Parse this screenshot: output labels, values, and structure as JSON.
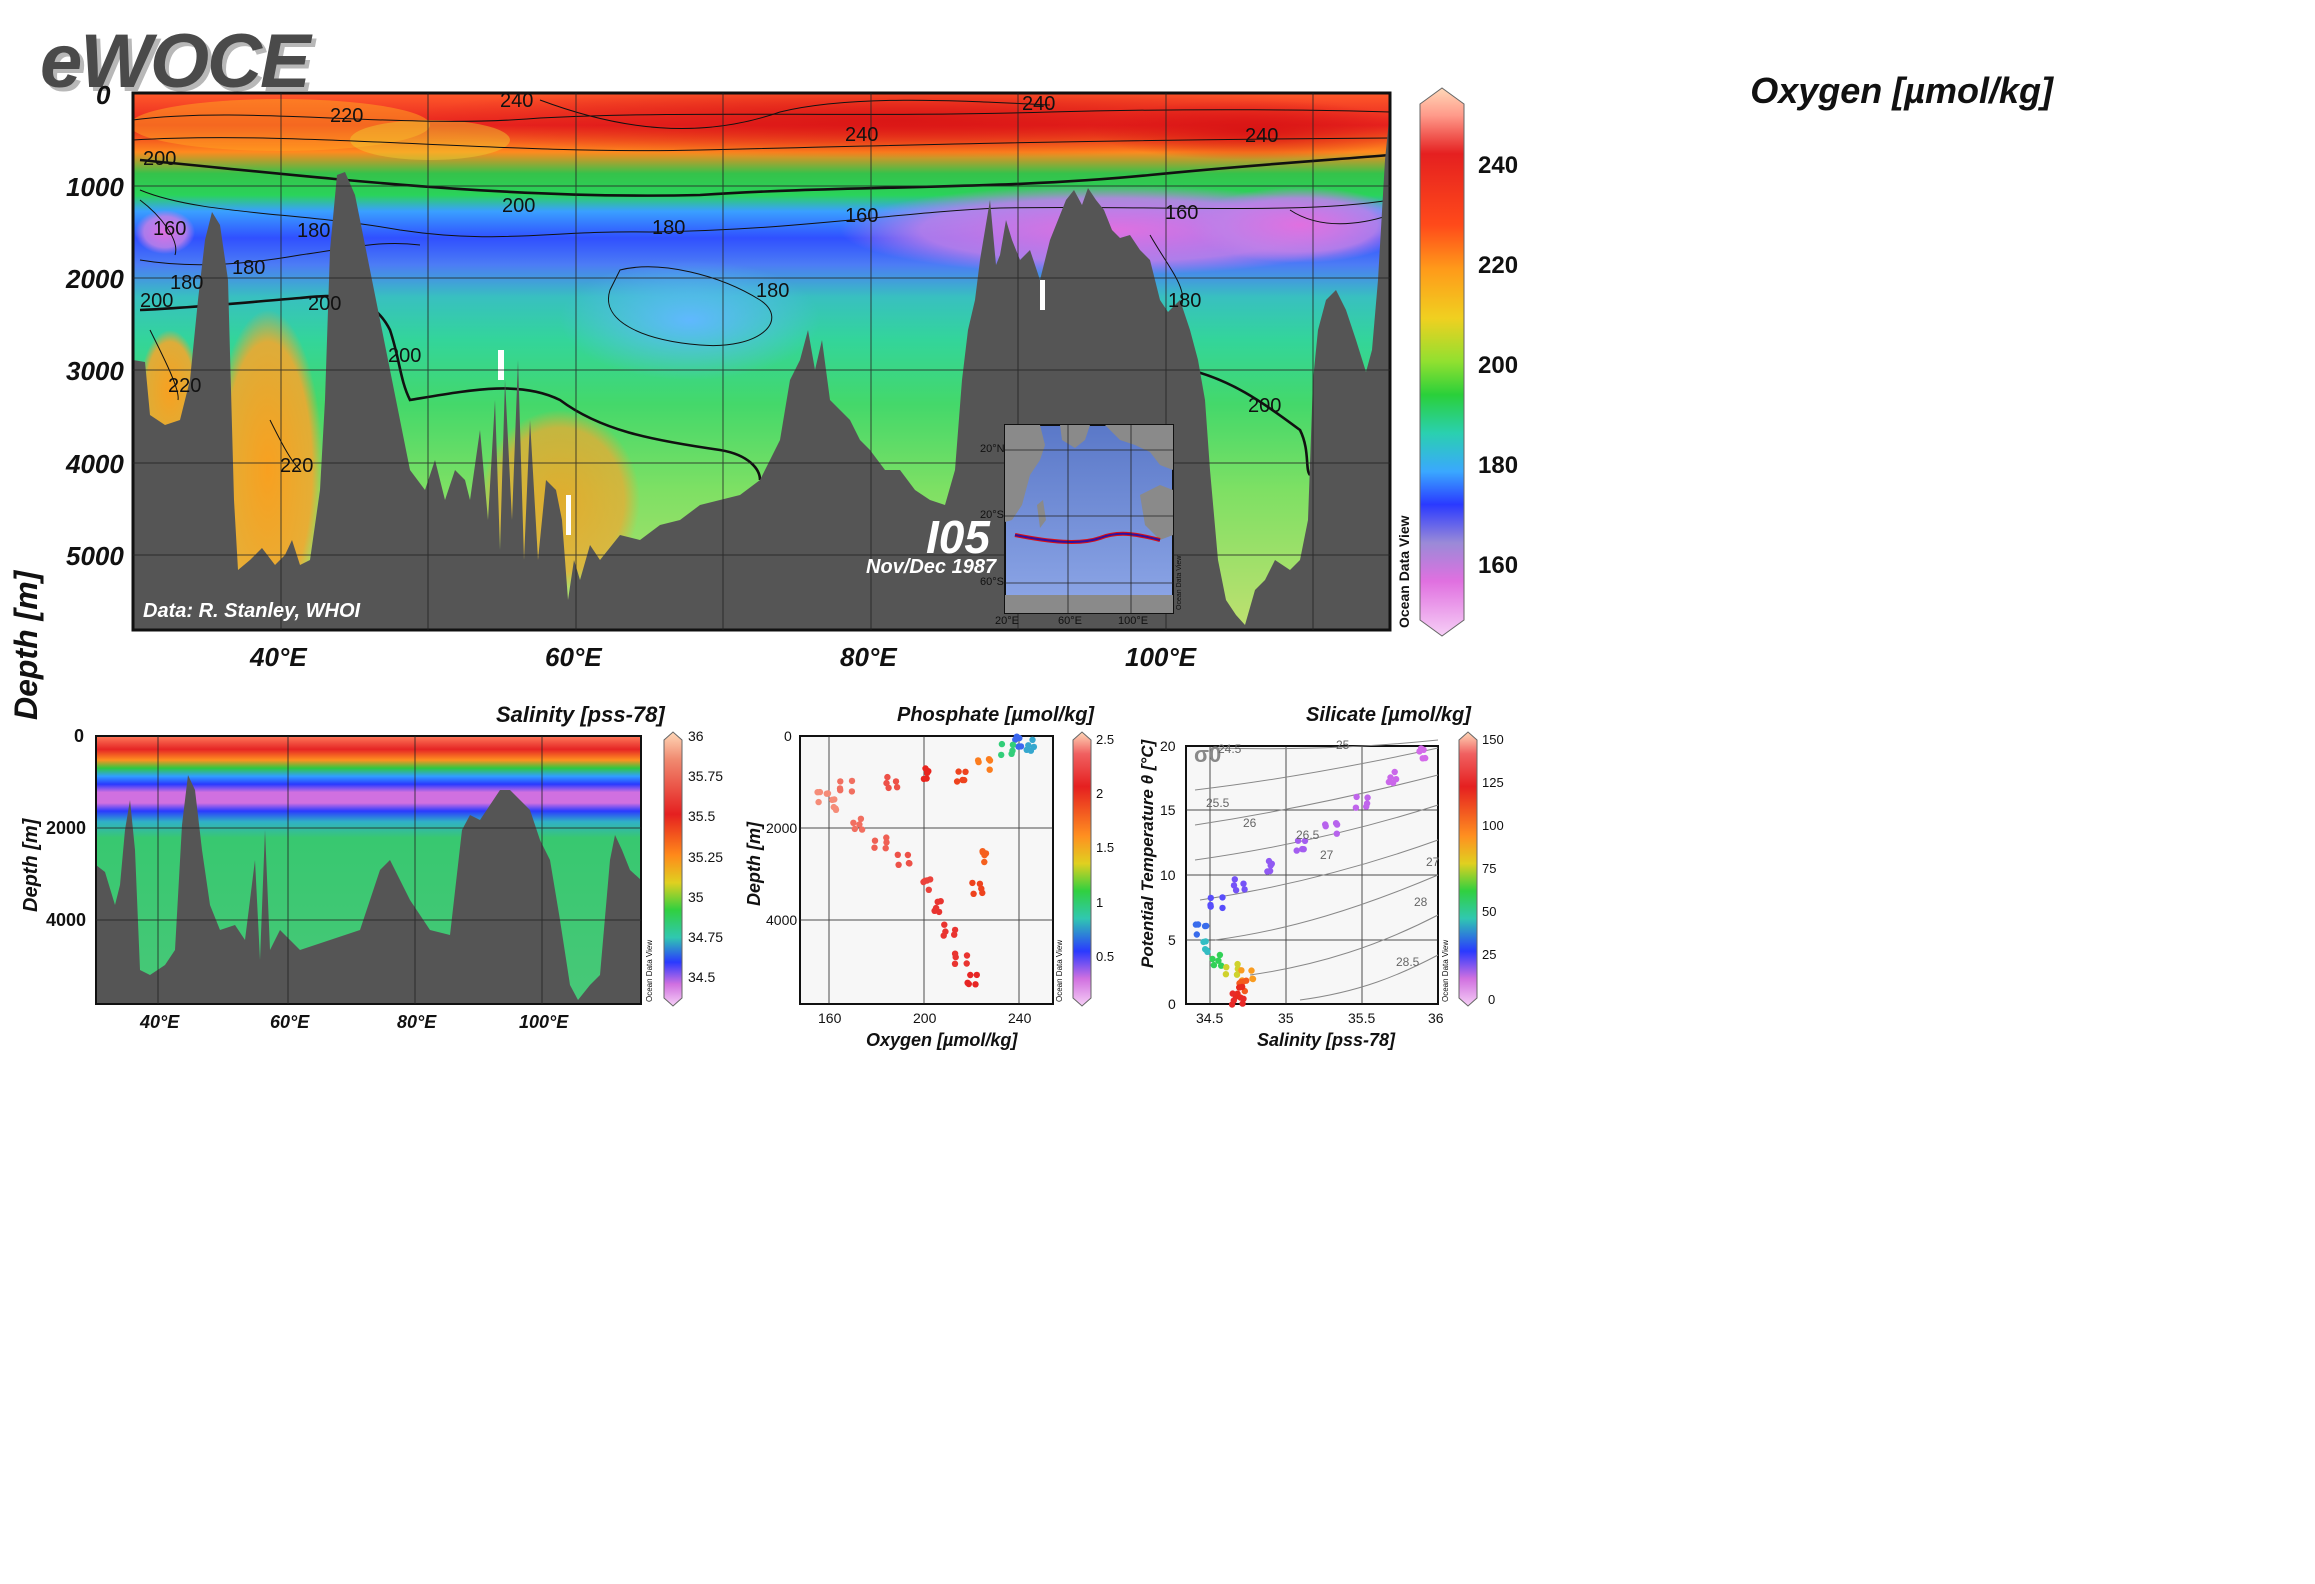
{
  "logo": "eWOCE",
  "main": {
    "title": "Oxygen [µmol/kg]",
    "ylabel": "Depth [m]",
    "yticks": [
      "0",
      "1000",
      "2000",
      "3000",
      "4000",
      "5000"
    ],
    "xticks": [
      "40°E",
      "60°E",
      "80°E",
      "100°E"
    ],
    "credit": "Data: R. Stanley, WHOI",
    "section": "I05",
    "date": "Nov/Dec 1987",
    "watermark": "Ocean Data View",
    "contour_labels": [
      "220",
      "240",
      "240",
      "240",
      "240",
      "200",
      "200",
      "180",
      "180",
      "160",
      "160",
      "160",
      "180",
      "180",
      "180",
      "200",
      "200",
      "200",
      "220",
      "220",
      "200",
      "180"
    ],
    "colorbar_ticks": [
      "240",
      "220",
      "200",
      "180",
      "160"
    ],
    "inset": {
      "lat_ticks": [
        "20°N",
        "20°S",
        "60°S"
      ],
      "lon_ticks": [
        "20°E",
        "60°E",
        "100°E"
      ],
      "watermark": "Ocean Data View"
    }
  },
  "salinity": {
    "title": "Salinity [pss-78]",
    "ylabel": "Depth [m]",
    "yticks": [
      "0",
      "2000",
      "4000"
    ],
    "xticks": [
      "40°E",
      "60°E",
      "80°E",
      "100°E"
    ],
    "colorbar_ticks": [
      "36",
      "35.75",
      "35.5",
      "35.25",
      "35",
      "34.75",
      "34.5"
    ],
    "watermark": "Ocean Data View"
  },
  "phosphate": {
    "title": "Phosphate [µmol/kg]",
    "ylabel": "Depth [m]",
    "xlabel": "Oxygen [µmol/kg]",
    "yticks": [
      "0",
      "2000",
      "4000"
    ],
    "xticks": [
      "160",
      "200",
      "240"
    ],
    "colorbar_ticks": [
      "2.5",
      "2",
      "1.5",
      "1",
      "0.5"
    ],
    "watermark": "Ocean Data View"
  },
  "silicate": {
    "title": "Silicate [µmol/kg]",
    "ylabel": "Potential Temperature θ [°C]",
    "xlabel": "Salinity [pss-78]",
    "yticks": [
      "20",
      "15",
      "10",
      "5",
      "0"
    ],
    "xticks": [
      "34.5",
      "35",
      "35.5",
      "36"
    ],
    "sigma_symbol": "σ0",
    "isopycnal_labels": [
      "24.5",
      "25",
      "25.5",
      "26",
      "26.5",
      "27",
      "27",
      "28",
      "28.5"
    ],
    "colorbar_ticks": [
      "150",
      "125",
      "100",
      "75",
      "50",
      "25",
      "0"
    ],
    "watermark": "Ocean Data View"
  },
  "chart_data": [
    {
      "type": "heatmap",
      "title": "Oxygen [µmol/kg]",
      "ylabel": "Depth [m]",
      "x_range_degE": [
        30,
        115
      ],
      "ylim": [
        0,
        5800
      ],
      "colorbar_range": [
        148,
        255
      ],
      "contour_levels": [
        160,
        180,
        200,
        220,
        240
      ],
      "oxygen_profile_by_depth_m": [
        {
          "depth": 0,
          "value": 232
        },
        {
          "depth": 400,
          "value": 238
        },
        {
          "depth": 800,
          "value": 218
        },
        {
          "depth": 1000,
          "value": 200
        },
        {
          "depth": 1500,
          "value": 170
        },
        {
          "depth": 2000,
          "value": 182
        },
        {
          "depth": 2500,
          "value": 188
        },
        {
          "depth": 3000,
          "value": 196
        },
        {
          "depth": 4000,
          "value": 205
        },
        {
          "depth": 5000,
          "value": 214
        }
      ]
    },
    {
      "type": "heatmap",
      "title": "Salinity [pss-78]",
      "ylabel": "Depth [m]",
      "x_range_degE": [
        30,
        115
      ],
      "ylim": [
        0,
        5800
      ],
      "colorbar_range": [
        34.4,
        36
      ],
      "salinity_profile_by_depth_m": [
        {
          "depth": 0,
          "value": 35.6
        },
        {
          "depth": 300,
          "value": 35.3
        },
        {
          "depth": 600,
          "value": 34.9
        },
        {
          "depth": 1000,
          "value": 34.5
        },
        {
          "depth": 1400,
          "value": 34.6
        },
        {
          "depth": 2000,
          "value": 34.73
        },
        {
          "depth": 4000,
          "value": 34.72
        }
      ]
    },
    {
      "type": "scatter",
      "title": "Phosphate [µmol/kg]",
      "xlabel": "Oxygen [µmol/kg]",
      "ylabel": "Depth [m]",
      "xlim": [
        145,
        255
      ],
      "ylim": [
        0,
        5800
      ],
      "colorbar_range": [
        0,
        2.5
      ],
      "points": [
        {
          "x": 240,
          "y": 100,
          "c": 0.4
        },
        {
          "x": 245,
          "y": 200,
          "c": 0.6
        },
        {
          "x": 235,
          "y": 300,
          "c": 0.9
        },
        {
          "x": 225,
          "y": 600,
          "c": 1.8
        },
        {
          "x": 215,
          "y": 900,
          "c": 2.0
        },
        {
          "x": 200,
          "y": 800,
          "c": 2.1
        },
        {
          "x": 185,
          "y": 1000,
          "c": 2.3
        },
        {
          "x": 165,
          "y": 1100,
          "c": 2.4
        },
        {
          "x": 155,
          "y": 1300,
          "c": 2.5
        },
        {
          "x": 160,
          "y": 1500,
          "c": 2.5
        },
        {
          "x": 170,
          "y": 1900,
          "c": 2.4
        },
        {
          "x": 180,
          "y": 2300,
          "c": 2.35
        },
        {
          "x": 190,
          "y": 2700,
          "c": 2.3
        },
        {
          "x": 200,
          "y": 3200,
          "c": 2.25
        },
        {
          "x": 205,
          "y": 3700,
          "c": 2.2
        },
        {
          "x": 210,
          "y": 4200,
          "c": 2.2
        },
        {
          "x": 215,
          "y": 4800,
          "c": 2.2
        },
        {
          "x": 220,
          "y": 5300,
          "c": 2.15
        },
        {
          "x": 225,
          "y": 2600,
          "c": 1.9
        },
        {
          "x": 222,
          "y": 3300,
          "c": 2.0
        }
      ]
    },
    {
      "type": "scatter",
      "title": "Silicate [µmol/kg]",
      "xlabel": "Salinity [pss-78]",
      "ylabel": "Potential Temperature θ [°C]",
      "xlim": [
        34.35,
        36
      ],
      "ylim": [
        0,
        20.5
      ],
      "colorbar_range": [
        0,
        150
      ],
      "points": [
        {
          "x": 35.9,
          "y": 20,
          "c": 2
        },
        {
          "x": 35.7,
          "y": 18,
          "c": 3
        },
        {
          "x": 35.5,
          "y": 16,
          "c": 4
        },
        {
          "x": 35.3,
          "y": 14,
          "c": 5
        },
        {
          "x": 35.1,
          "y": 12.5,
          "c": 7
        },
        {
          "x": 34.9,
          "y": 11,
          "c": 9
        },
        {
          "x": 34.7,
          "y": 9.5,
          "c": 12
        },
        {
          "x": 34.55,
          "y": 8,
          "c": 15
        },
        {
          "x": 34.45,
          "y": 6,
          "c": 25
        },
        {
          "x": 34.48,
          "y": 4.5,
          "c": 40
        },
        {
          "x": 34.55,
          "y": 3.5,
          "c": 60
        },
        {
          "x": 34.65,
          "y": 2.8,
          "c": 80
        },
        {
          "x": 34.75,
          "y": 2.2,
          "c": 100
        },
        {
          "x": 34.72,
          "y": 1.5,
          "c": 115
        },
        {
          "x": 34.7,
          "y": 0.9,
          "c": 125
        },
        {
          "x": 34.69,
          "y": 0.4,
          "c": 130
        }
      ]
    }
  ]
}
